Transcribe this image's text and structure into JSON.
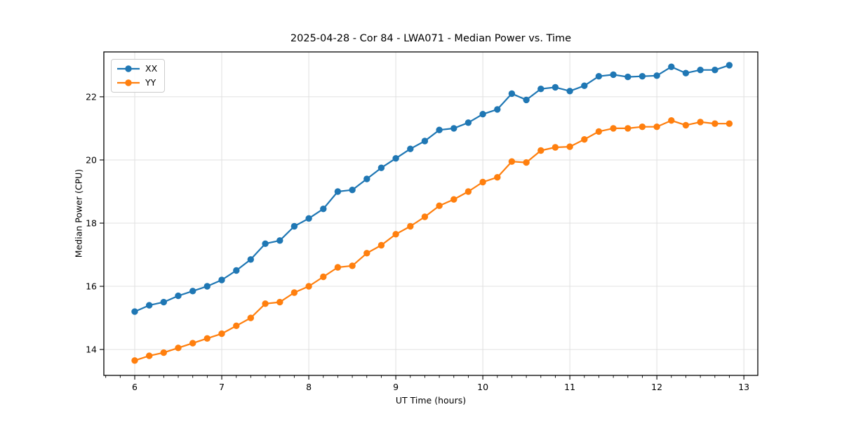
{
  "chart_data": {
    "type": "line",
    "title": "2025-04-28 - Cor 84 - LWA071 - Median Power vs. Time",
    "xlabel": "UT Time (hours)",
    "ylabel": "Median Power (CPU)",
    "xlim": [
      5.645,
      13.16
    ],
    "ylim": [
      13.18,
      23.42
    ],
    "x_major_ticks": [
      6,
      7,
      8,
      9,
      10,
      11,
      12,
      13
    ],
    "x_minor_per_unit": 6,
    "y_major_ticks": [
      14,
      16,
      18,
      20,
      22
    ],
    "grid": "major-both",
    "legend_position": "upper-left",
    "x": [
      6,
      6.167,
      6.333,
      6.5,
      6.667,
      6.833,
      7,
      7.167,
      7.333,
      7.5,
      7.667,
      7.833,
      8,
      8.167,
      8.333,
      8.5,
      8.667,
      8.833,
      9,
      9.167,
      9.333,
      9.5,
      9.667,
      9.833,
      10,
      10.167,
      10.333,
      10.5,
      10.667,
      10.833,
      11,
      11.167,
      11.333,
      11.5,
      11.667,
      11.833,
      12,
      12.167,
      12.333,
      12.5,
      12.667,
      12.833
    ],
    "series": [
      {
        "name": "XX",
        "color": "#1f77b4",
        "values": [
          15.2,
          15.4,
          15.5,
          15.7,
          15.85,
          16.0,
          16.2,
          16.5,
          16.85,
          17.35,
          17.45,
          17.9,
          18.15,
          18.45,
          19.0,
          19.05,
          19.4,
          19.75,
          20.05,
          20.35,
          20.6,
          20.95,
          21.0,
          21.18,
          21.45,
          21.6,
          22.1,
          21.9,
          22.25,
          22.3,
          22.18,
          22.35,
          22.65,
          22.7,
          22.63,
          22.65,
          22.67,
          22.95,
          22.75,
          22.85,
          22.85,
          23.0
        ]
      },
      {
        "name": "YY",
        "color": "#ff7f0e",
        "values": [
          13.65,
          13.8,
          13.9,
          14.05,
          14.2,
          14.35,
          14.5,
          14.75,
          15.0,
          15.45,
          15.5,
          15.8,
          16.0,
          16.3,
          16.6,
          16.65,
          17.05,
          17.3,
          17.65,
          17.9,
          18.2,
          18.55,
          18.75,
          19.0,
          19.3,
          19.45,
          19.95,
          19.92,
          20.3,
          20.4,
          20.42,
          20.65,
          20.9,
          21.0,
          21.0,
          21.05,
          21.05,
          21.25,
          21.1,
          21.2,
          21.15,
          21.15
        ]
      }
    ],
    "style": {
      "grid_color": "#e0e0e0",
      "spine_color": "#000000",
      "tick_color": "#000000",
      "background": "#ffffff",
      "line_width": 2.2,
      "marker_radius": 4.7
    }
  }
}
